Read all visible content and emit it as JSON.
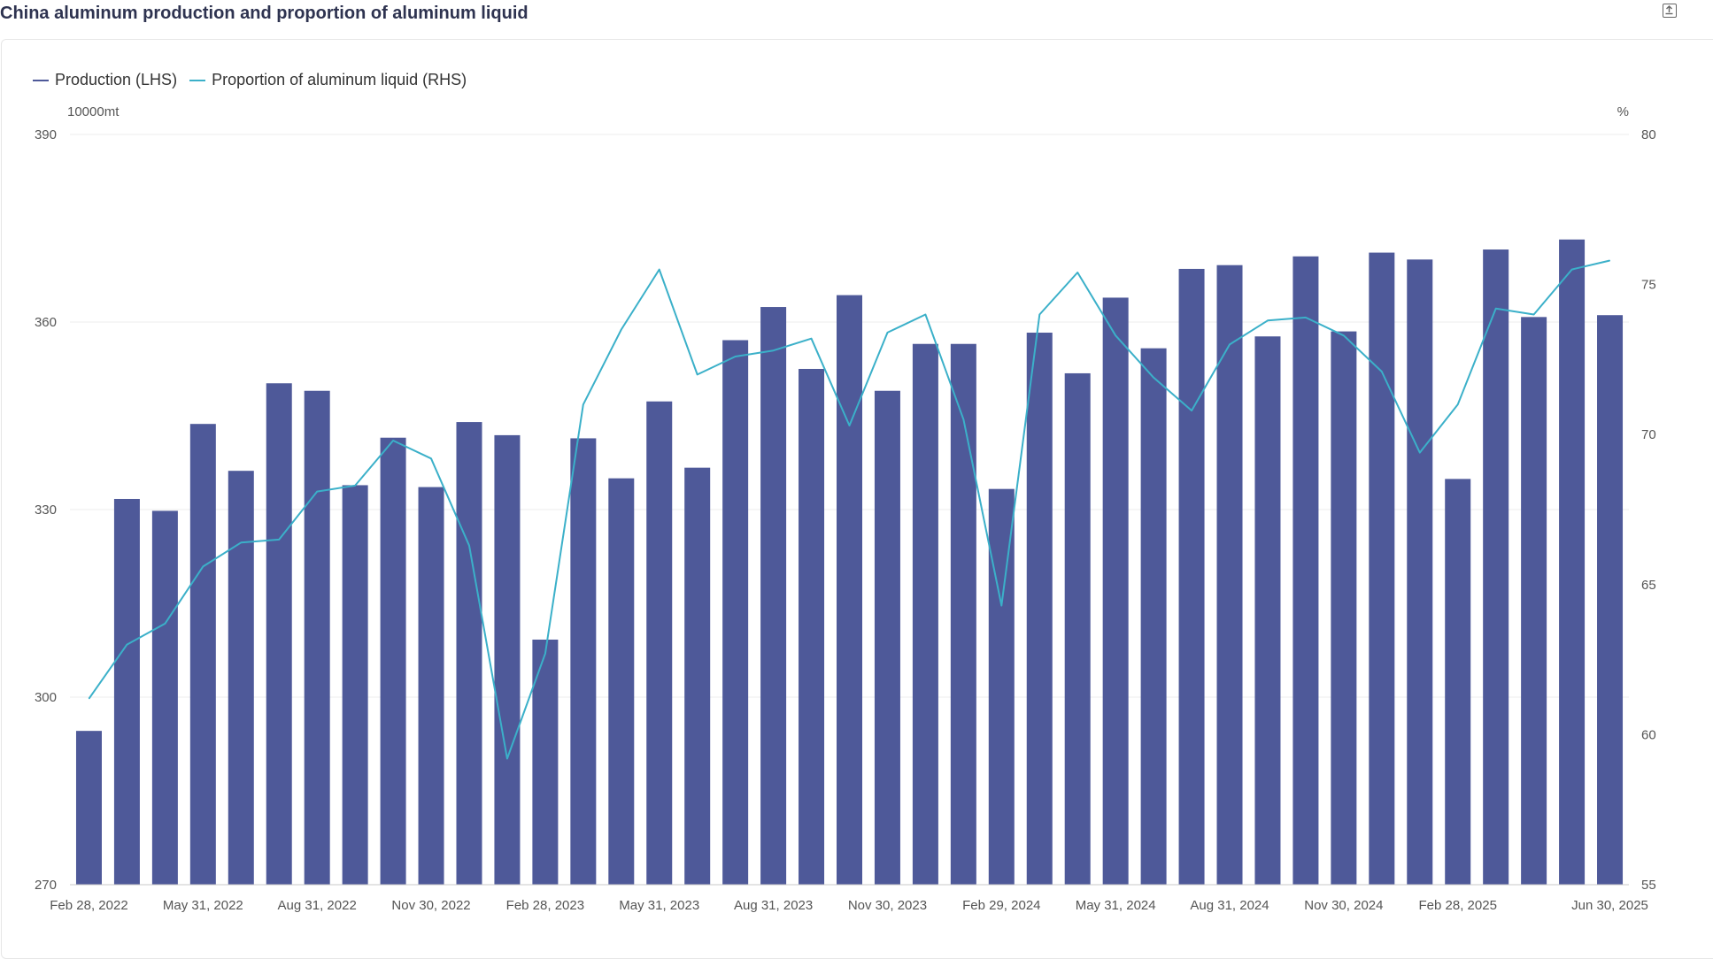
{
  "title": "China aluminum production and proportion of aluminum liquid",
  "icons": {
    "export": "export-icon"
  },
  "colors": {
    "bar": "#4e5999",
    "line": "#3bb0c9",
    "title": "#2e3350"
  },
  "chart_data": {
    "type": "bar",
    "title": "China aluminum production and proportion of aluminum liquid",
    "x_tick_labels": [
      "Feb 28, 2022",
      "May 31, 2022",
      "Aug 31, 2022",
      "Nov 30, 2022",
      "Feb 28, 2023",
      "May 31, 2023",
      "Aug 31, 2023",
      "Nov 30, 2023",
      "Feb 29, 2024",
      "May 31, 2024",
      "Aug 31, 2024",
      "Nov 30, 2024",
      "Feb 28, 2025",
      "Jun 30, 2025"
    ],
    "x": [
      "2022-02",
      "2022-03",
      "2022-04",
      "2022-05",
      "2022-06",
      "2022-07",
      "2022-08",
      "2022-09",
      "2022-10",
      "2022-11",
      "2022-12",
      "2023-01",
      "2023-02",
      "2023-03",
      "2023-04",
      "2023-05",
      "2023-06",
      "2023-07",
      "2023-08",
      "2023-09",
      "2023-10",
      "2023-11",
      "2023-12",
      "2024-01",
      "2024-02",
      "2024-03",
      "2024-04",
      "2024-05",
      "2024-06",
      "2024-07",
      "2024-08",
      "2024-09",
      "2024-10",
      "2024-11",
      "2024-12",
      "2025-01",
      "2025-02",
      "2025-03",
      "2025-04",
      "2025-05",
      "2025-06"
    ],
    "series": [
      {
        "name": "Production (LHS)",
        "type": "bar",
        "axis": "left",
        "values": [
          294.6,
          331.7,
          329.8,
          343.7,
          336.2,
          350.2,
          349.0,
          333.9,
          341.5,
          333.6,
          344.0,
          341.9,
          309.2,
          341.4,
          335.0,
          347.3,
          336.7,
          357.1,
          362.4,
          352.5,
          364.3,
          349.0,
          356.5,
          356.5,
          333.3,
          358.3,
          351.8,
          363.9,
          355.8,
          368.5,
          369.1,
          357.7,
          370.5,
          358.5,
          371.1,
          370.0,
          334.9,
          371.6,
          360.8,
          373.2,
          361.1
        ]
      },
      {
        "name": "Proportion of aluminum liquid (RHS)",
        "type": "line",
        "axis": "right",
        "values": [
          61.2,
          63.0,
          63.7,
          65.6,
          66.4,
          66.5,
          68.1,
          68.3,
          69.8,
          69.2,
          66.3,
          59.2,
          62.7,
          71.0,
          73.5,
          75.5,
          72.0,
          72.6,
          72.8,
          73.2,
          70.3,
          73.4,
          74.0,
          70.5,
          64.3,
          74.0,
          75.4,
          73.3,
          71.9,
          70.8,
          73.0,
          73.8,
          73.9,
          73.3,
          72.1,
          69.4,
          71.0,
          74.2,
          74.0,
          75.5,
          75.8
        ]
      }
    ],
    "y_left": {
      "unit": "10000mt",
      "min": 270,
      "max": 390,
      "ticks": [
        270,
        300,
        330,
        360,
        390
      ]
    },
    "y_right": {
      "unit": "%",
      "min": 55,
      "max": 80,
      "ticks": [
        55,
        60,
        65,
        70,
        75,
        80
      ]
    },
    "legend": [
      {
        "label": "Production (LHS)",
        "color": "#4e5999"
      },
      {
        "label": "Proportion of aluminum liquid (RHS)",
        "color": "#3bb0c9"
      }
    ],
    "legend_position": "top-left",
    "grid": true
  }
}
